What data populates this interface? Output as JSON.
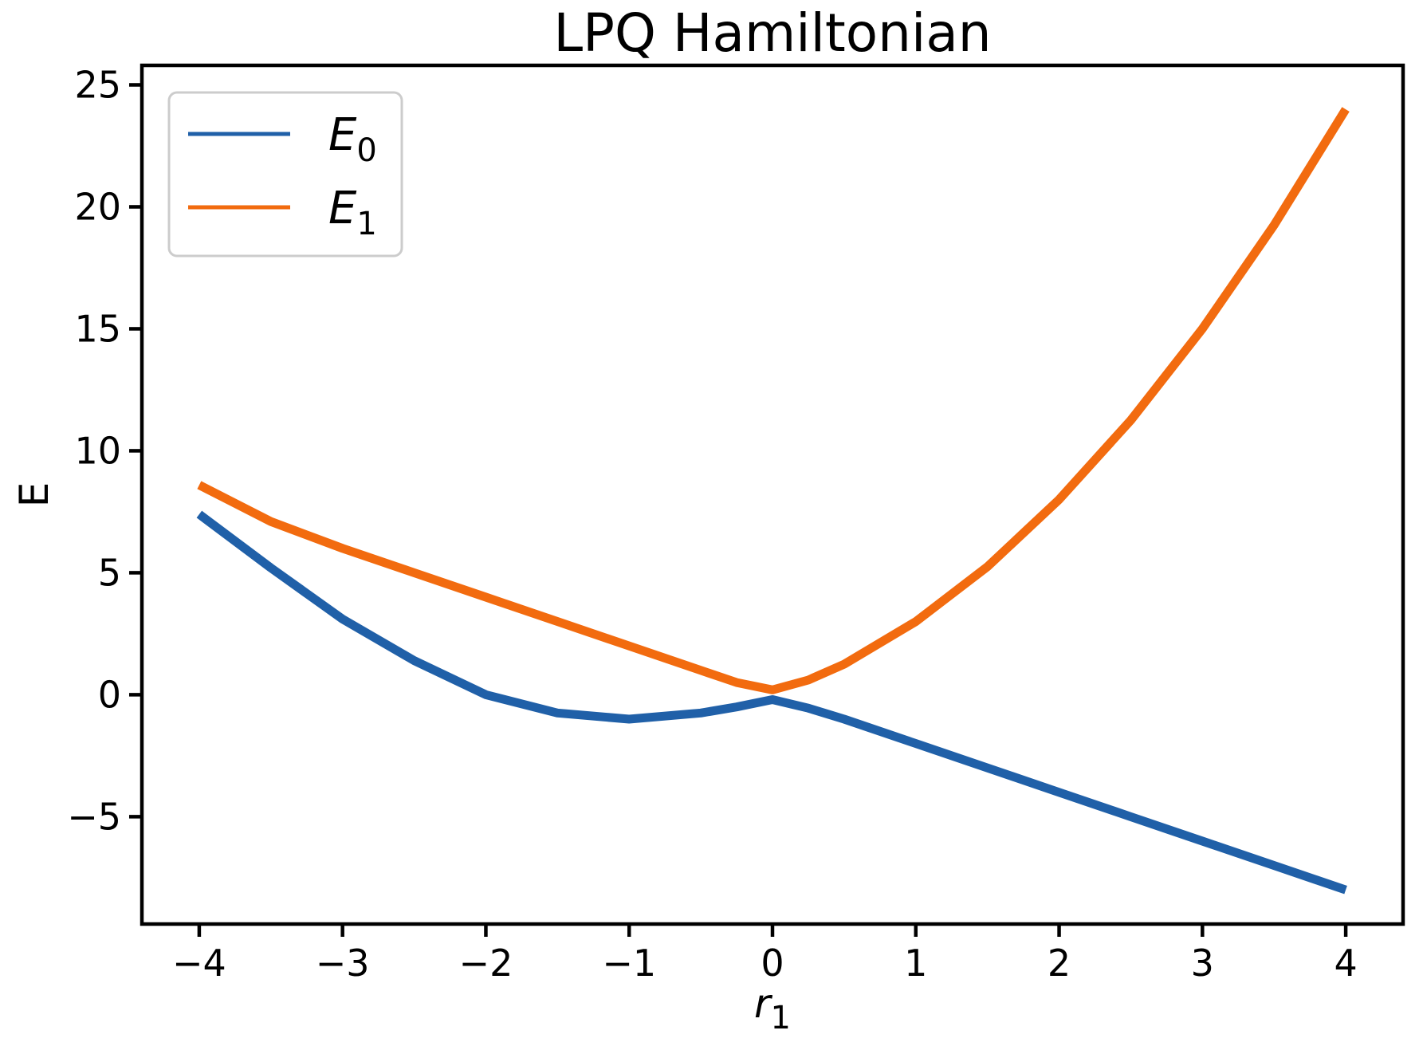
{
  "chart_data": {
    "type": "line",
    "title": "LPQ Hamiltonian",
    "xlabel": {
      "main": "r",
      "sub": "1"
    },
    "ylabel": "E",
    "xlim": [
      -4.4,
      4.4
    ],
    "ylim": [
      -9.4,
      25.8
    ],
    "xticks": [
      -4,
      -3,
      -2,
      -1,
      0,
      1,
      2,
      3,
      4
    ],
    "xtick_labels": [
      "−4",
      "−3",
      "−2",
      "−1",
      "0",
      "1",
      "2",
      "3",
      "4"
    ],
    "yticks": [
      -5,
      0,
      5,
      10,
      15,
      20,
      25
    ],
    "ytick_labels": [
      "−5",
      "0",
      "5",
      "10",
      "15",
      "20",
      "25"
    ],
    "grid": false,
    "legend_position": "top-left",
    "series": [
      {
        "name": "E",
        "name_sub": "0",
        "color": "#2060a8",
        "x": [
          -4.0,
          -3.5,
          -3.0,
          -2.5,
          -2.0,
          -1.5,
          -1.0,
          -0.5,
          -0.25,
          0.0,
          0.25,
          0.5,
          1.0,
          1.5,
          2.0,
          2.5,
          3.0,
          3.5,
          4.0
        ],
        "y": [
          7.4,
          5.2,
          3.1,
          1.4,
          0.0,
          -0.75,
          -1.0,
          -0.75,
          -0.5,
          -0.2,
          -0.55,
          -1.0,
          -2.0,
          -3.0,
          -4.0,
          -5.0,
          -6.0,
          -7.0,
          -8.0
        ]
      },
      {
        "name": "E",
        "name_sub": "1",
        "color": "#f26b0f",
        "x": [
          -4.0,
          -3.5,
          -3.0,
          -2.5,
          -2.0,
          -1.5,
          -1.0,
          -0.5,
          -0.25,
          0.0,
          0.25,
          0.5,
          1.0,
          1.5,
          2.0,
          2.5,
          3.0,
          3.5,
          4.0
        ],
        "y": [
          8.6,
          7.1,
          6.0,
          5.0,
          4.0,
          3.0,
          2.0,
          1.0,
          0.5,
          0.2,
          0.6,
          1.25,
          3.0,
          5.25,
          8.0,
          11.25,
          15.0,
          19.25,
          24.0
        ]
      }
    ]
  }
}
